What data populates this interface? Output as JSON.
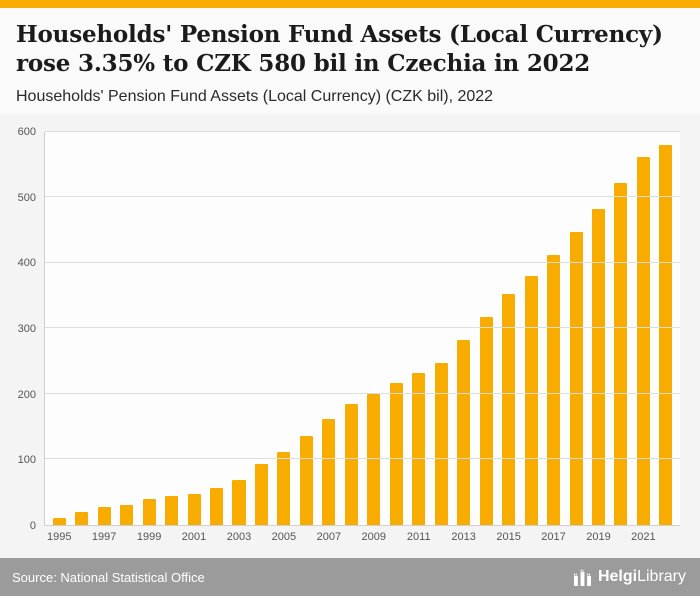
{
  "accent_color": "#F9AC00",
  "header": {
    "title": "Households' Pension Fund Assets (Local Currency) rose 3.35% to CZK 580 bil in Czechia in 2022",
    "subtitle": "Households' Pension Fund Assets (Local Currency) (CZK bil), 2022"
  },
  "footer": {
    "source": "Source: National Statistical Office",
    "logo_bold": "Helgi",
    "logo_light": "Library"
  },
  "chart_data": {
    "type": "bar",
    "title": "Households' Pension Fund Assets (Local Currency) (CZK bil), 2022",
    "categories": [
      "1995",
      "1996",
      "1997",
      "1998",
      "1999",
      "2000",
      "2001",
      "2002",
      "2003",
      "2004",
      "2005",
      "2006",
      "2007",
      "2008",
      "2009",
      "2010",
      "2011",
      "2012",
      "2013",
      "2014",
      "2015",
      "2016",
      "2017",
      "2018",
      "2019",
      "2020",
      "2021",
      "2022"
    ],
    "values": [
      10,
      20,
      28,
      31,
      39,
      44,
      48,
      56,
      69,
      93,
      112,
      136,
      162,
      185,
      200,
      216,
      232,
      247,
      283,
      318,
      352,
      380,
      412,
      447,
      483,
      522,
      561,
      580
    ],
    "xlabel": "",
    "ylabel": "",
    "ylim": [
      0,
      600
    ],
    "yticks": [
      0,
      100,
      200,
      300,
      400,
      500,
      600
    ],
    "xtick_label_every": 2,
    "bar_color": "#F9AC00",
    "grid": true,
    "legend": false
  }
}
